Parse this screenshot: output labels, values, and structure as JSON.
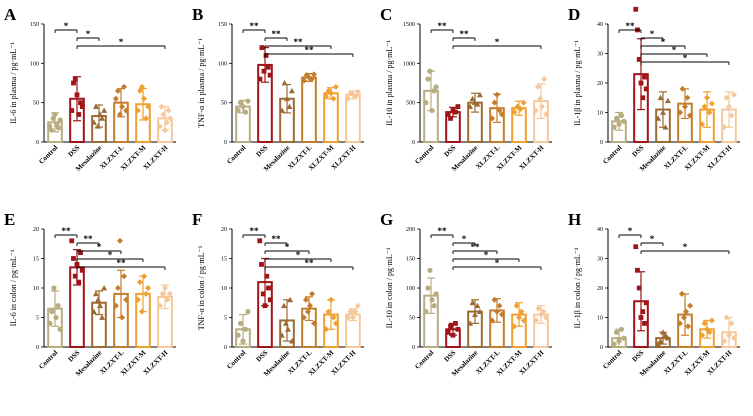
{
  "colors": {
    "Control": "#b8ad80",
    "DSS": "#a01418",
    "Mesalazine": "#9b6b33",
    "XLZXT-L": "#c47d2b",
    "XLZXT-M": "#f0a030",
    "XLZXT-H": "#f6c79a"
  },
  "chart_data": [
    {
      "panel": "A",
      "type": "bar",
      "ylabel": "IL-6 in plasma / pg·mL⁻¹",
      "ylim": [
        0,
        150
      ],
      "ticks": [
        0,
        50,
        100,
        150
      ],
      "categories": [
        "Control",
        "DSS",
        "Mesalazine",
        "XLZXT-L",
        "XLZXT-M",
        "XLZXT-H"
      ],
      "values": [
        25,
        55,
        33,
        50,
        48,
        30
      ],
      "errors": [
        12,
        28,
        14,
        18,
        20,
        15
      ],
      "points": [
        [
          20,
          15,
          30,
          35,
          22,
          18,
          28
        ],
        [
          40,
          75,
          80,
          60,
          35,
          50,
          45
        ],
        [
          25,
          45,
          20,
          35,
          30,
          40
        ],
        [
          55,
          65,
          35,
          45,
          70,
          40
        ],
        [
          40,
          65,
          70,
          55,
          30,
          45
        ],
        [
          20,
          45,
          35,
          15,
          25,
          40,
          30
        ]
      ],
      "significance": [
        {
          "a": 0,
          "b": 1,
          "label": "*"
        },
        {
          "a": 1,
          "b": 2,
          "label": "*"
        },
        {
          "a": 1,
          "b": 5,
          "label": "*"
        }
      ]
    },
    {
      "panel": "B",
      "type": "bar",
      "ylabel": "TNF-α in plasma / pg·mL⁻¹",
      "ylim": [
        0,
        150
      ],
      "ticks": [
        0,
        50,
        100,
        150
      ],
      "categories": [
        "Control",
        "DSS",
        "Mesalazine",
        "XLZXT-L",
        "XLZXT-M",
        "XLZXT-H"
      ],
      "values": [
        45,
        98,
        55,
        82,
        62,
        60
      ],
      "errors": [
        8,
        22,
        18,
        5,
        7,
        5
      ],
      "points": [
        [
          40,
          50,
          45,
          38,
          52
        ],
        [
          80,
          120,
          90,
          110,
          95,
          85
        ],
        [
          40,
          75,
          55,
          45,
          65
        ],
        [
          78,
          85,
          82,
          80,
          86
        ],
        [
          58,
          65,
          62,
          55,
          70
        ],
        [
          55,
          62,
          60,
          58,
          64
        ]
      ],
      "significance": [
        {
          "a": 0,
          "b": 1,
          "label": "**"
        },
        {
          "a": 1,
          "b": 2,
          "label": "**"
        },
        {
          "a": 1,
          "b": 4,
          "label": "**"
        },
        {
          "a": 1,
          "b": 5,
          "label": "**"
        }
      ]
    },
    {
      "panel": "C",
      "type": "bar",
      "ylabel": "IL-10 in plasma / pg·mL⁻¹",
      "ylim": [
        0,
        1500
      ],
      "ticks": [
        0,
        500,
        1000,
        1500
      ],
      "categories": [
        "Control",
        "DSS",
        "Mesalazine",
        "XLZXT-L",
        "XLZXT-M",
        "XLZXT-H"
      ],
      "values": [
        650,
        380,
        500,
        430,
        430,
        520
      ],
      "errors": [
        250,
        60,
        120,
        180,
        90,
        220
      ],
      "points": [
        [
          500,
          800,
          900,
          400,
          650,
          700
        ],
        [
          350,
          300,
          400,
          380,
          450
        ],
        [
          450,
          550,
          500,
          480,
          600
        ],
        [
          300,
          500,
          600,
          400,
          350
        ],
        [
          380,
          450,
          420,
          500
        ],
        [
          400,
          700,
          550,
          450,
          800,
          350
        ]
      ],
      "significance": [
        {
          "a": 0,
          "b": 1,
          "label": "**"
        },
        {
          "a": 1,
          "b": 2,
          "label": "**"
        },
        {
          "a": 1,
          "b": 5,
          "label": "*"
        }
      ]
    },
    {
      "panel": "D",
      "type": "bar",
      "ylabel": "IL-1β in plasma / pg·mL⁻¹",
      "ylim": [
        0,
        40
      ],
      "ticks": [
        0,
        10,
        20,
        30,
        40
      ],
      "categories": [
        "Control",
        "DSS",
        "Mesalazine",
        "XLZXT-L",
        "XLZXT-M",
        "XLZXT-H"
      ],
      "values": [
        7,
        23,
        11,
        13,
        11,
        11
      ],
      "errors": [
        3,
        12,
        6,
        5,
        6,
        6
      ],
      "points": [
        [
          5,
          8,
          6,
          9,
          7
        ],
        [
          45,
          38,
          28,
          20,
          15,
          22,
          18
        ],
        [
          8,
          15,
          10,
          5,
          14
        ],
        [
          10,
          18,
          12,
          15,
          9
        ],
        [
          6,
          12,
          15,
          10,
          13
        ],
        [
          5,
          15,
          12,
          9,
          16
        ]
      ],
      "significance": [
        {
          "a": 0,
          "b": 1,
          "label": "**"
        },
        {
          "a": 1,
          "b": 2,
          "label": "*"
        },
        {
          "a": 1,
          "b": 3,
          "label": "*"
        },
        {
          "a": 1,
          "b": 4,
          "label": "*"
        },
        {
          "a": 1,
          "b": 5,
          "label": "*"
        }
      ]
    },
    {
      "panel": "E",
      "type": "bar",
      "ylabel": "IL-6 in colon / pg·mL⁻¹",
      "ylim": [
        0,
        20
      ],
      "ticks": [
        0,
        5,
        10,
        15,
        20
      ],
      "categories": [
        "Control",
        "DSS",
        "Mesalazine",
        "XLZXT-L",
        "XLZXT-M",
        "XLZXT-H"
      ],
      "values": [
        6.5,
        13.5,
        7.5,
        9,
        9,
        8.5
      ],
      "errors": [
        3,
        3,
        2,
        4,
        3,
        2
      ],
      "points": [
        [
          4,
          6,
          10,
          5,
          7,
          3
        ],
        [
          18,
          15,
          12,
          14,
          11,
          16,
          13
        ],
        [
          6,
          9,
          8,
          7,
          5,
          10
        ],
        [
          7,
          10,
          18,
          5,
          12,
          8
        ],
        [
          8,
          11,
          6,
          12,
          9,
          10
        ],
        [
          7,
          9,
          10,
          8,
          9
        ]
      ],
      "significance": [
        {
          "a": 0,
          "b": 1,
          "label": "**"
        },
        {
          "a": 1,
          "b": 2,
          "label": "**"
        },
        {
          "a": 1,
          "b": 3,
          "label": "*"
        },
        {
          "a": 1,
          "b": 4,
          "label": "*"
        },
        {
          "a": 1,
          "b": 5,
          "label": "**"
        }
      ]
    },
    {
      "panel": "F",
      "type": "bar",
      "ylabel": "TNF-α in colon / pg·mL⁻¹",
      "ylim": [
        0,
        20
      ],
      "ticks": [
        0,
        5,
        10,
        15,
        20
      ],
      "categories": [
        "Control",
        "DSS",
        "Mesalazine",
        "XLZXT-L",
        "XLZXT-M",
        "XLZXT-H"
      ],
      "values": [
        3,
        11,
        4.5,
        6.5,
        5.5,
        5.5
      ],
      "errors": [
        2.5,
        4,
        3.5,
        2,
        2.5,
        1
      ],
      "points": [
        [
          2,
          4,
          1,
          3,
          6
        ],
        [
          18,
          14,
          9,
          7,
          12,
          10,
          8
        ],
        [
          2,
          7,
          4,
          3,
          8,
          1
        ],
        [
          5,
          8,
          6,
          7,
          9,
          4
        ],
        [
          3,
          6,
          8,
          5,
          4
        ],
        [
          5,
          6,
          5,
          6,
          7
        ]
      ],
      "significance": [
        {
          "a": 0,
          "b": 1,
          "label": "**"
        },
        {
          "a": 1,
          "b": 2,
          "label": "**"
        },
        {
          "a": 1,
          "b": 3,
          "label": "*"
        },
        {
          "a": 1,
          "b": 4,
          "label": "*"
        },
        {
          "a": 1,
          "b": 5,
          "label": "**"
        }
      ]
    },
    {
      "panel": "G",
      "type": "bar",
      "ylabel": "IL-10 in colon / pg·mL⁻¹",
      "ylim": [
        0,
        200
      ],
      "ticks": [
        0,
        50,
        100,
        150,
        200
      ],
      "categories": [
        "Control",
        "DSS",
        "Mesalazine",
        "XLZXT-L",
        "XLZXT-M",
        "XLZXT-H"
      ],
      "values": [
        87,
        30,
        60,
        62,
        55,
        55
      ],
      "errors": [
        30,
        10,
        20,
        20,
        20,
        15
      ],
      "points": [
        [
          60,
          100,
          130,
          80,
          70,
          90
        ],
        [
          25,
          35,
          20,
          40,
          30
        ],
        [
          40,
          75,
          55,
          70,
          60
        ],
        [
          45,
          80,
          60,
          70,
          55
        ],
        [
          35,
          70,
          50,
          60,
          45
        ],
        [
          45,
          65,
          55,
          60,
          50
        ]
      ],
      "significance": [
        {
          "a": 0,
          "b": 1,
          "label": "**"
        },
        {
          "a": 1,
          "b": 2,
          "label": "*"
        },
        {
          "a": 1,
          "b": 3,
          "label": "**"
        },
        {
          "a": 1,
          "b": 4,
          "label": "*"
        },
        {
          "a": 1,
          "b": 5,
          "label": "*"
        }
      ]
    },
    {
      "panel": "H",
      "type": "bar",
      "ylabel": "IL-1β in colon / pg·mL⁻¹",
      "ylim": [
        0,
        40
      ],
      "ticks": [
        0,
        10,
        20,
        30,
        40
      ],
      "categories": [
        "Control",
        "DSS",
        "Mesalazine",
        "XLZXT-L",
        "XLZXT-M",
        "XLZXT-H"
      ],
      "values": [
        3,
        15.5,
        3,
        11,
        6,
        5
      ],
      "errors": [
        3,
        10,
        2,
        7,
        3,
        5
      ],
      "points": [
        [
          1,
          5,
          2,
          6,
          3
        ],
        [
          34,
          26,
          20,
          10,
          12,
          8,
          15
        ],
        [
          1,
          2,
          5,
          4,
          3
        ],
        [
          8,
          18,
          10,
          12,
          7,
          14
        ],
        [
          4,
          8,
          6,
          5,
          9
        ],
        [
          2,
          10,
          4,
          8,
          3
        ]
      ],
      "significance": [
        {
          "a": 0,
          "b": 1,
          "label": "*"
        },
        {
          "a": 1,
          "b": 2,
          "label": "*"
        },
        {
          "a": 1,
          "b": 5,
          "label": "*"
        }
      ]
    }
  ]
}
